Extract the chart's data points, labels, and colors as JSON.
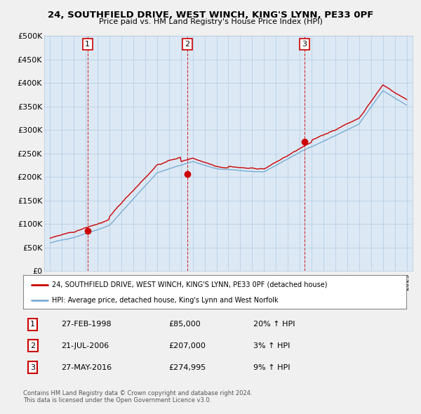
{
  "title": "24, SOUTHFIELD DRIVE, WEST WINCH, KING'S LYNN, PE33 0PF",
  "subtitle": "Price paid vs. HM Land Registry's House Price Index (HPI)",
  "legend_line1": "24, SOUTHFIELD DRIVE, WEST WINCH, KING'S LYNN, PE33 0PF (detached house)",
  "legend_line2": "HPI: Average price, detached house, King's Lynn and West Norfolk",
  "footer1": "Contains HM Land Registry data © Crown copyright and database right 2024.",
  "footer2": "This data is licensed under the Open Government Licence v3.0.",
  "transactions": [
    {
      "num": 1,
      "date": "27-FEB-1998",
      "price": 85000,
      "hpi": "20% ↑ HPI",
      "year_x": 1998.15
    },
    {
      "num": 2,
      "date": "21-JUL-2006",
      "price": 207000,
      "hpi": "3% ↑ HPI",
      "year_x": 2006.55
    },
    {
      "num": 3,
      "date": "27-MAY-2016",
      "price": 274995,
      "hpi": "9% ↑ HPI",
      "year_x": 2016.4
    }
  ],
  "red_color": "#cc0000",
  "blue_color": "#7aadd4",
  "dashed_red": "#cc0000",
  "ylim": [
    0,
    500000
  ],
  "yticks": [
    0,
    50000,
    100000,
    150000,
    200000,
    250000,
    300000,
    350000,
    400000,
    450000,
    500000
  ],
  "xlim_start": 1994.5,
  "xlim_end": 2025.5,
  "background": "#f0f0f0",
  "plot_bg": "#dce9f5",
  "grid_color": "#b0c8e0"
}
